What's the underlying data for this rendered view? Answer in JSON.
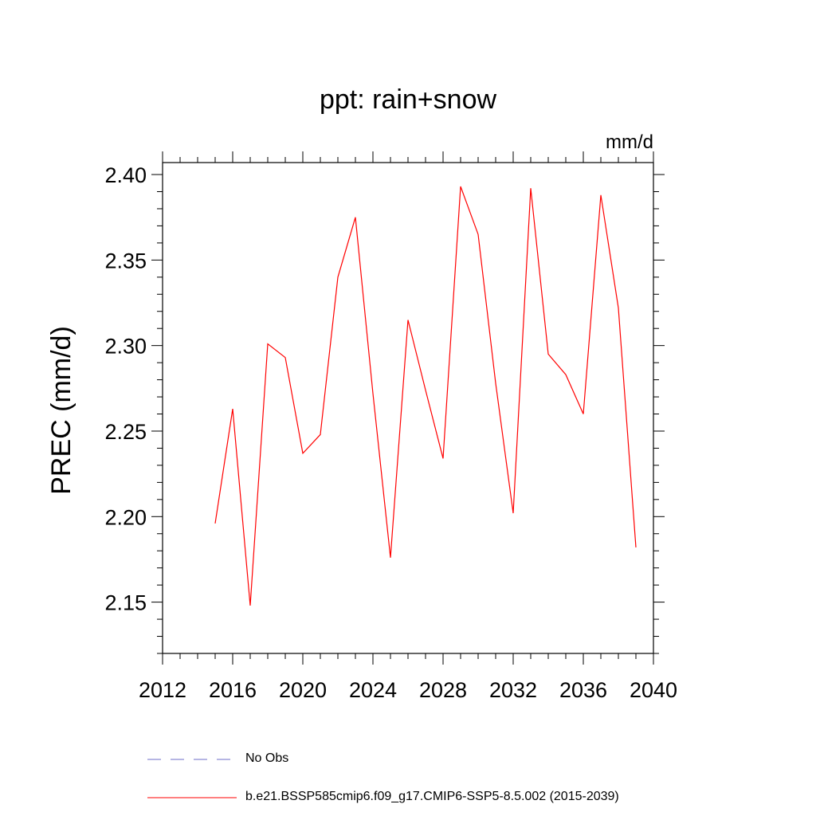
{
  "chart_data": {
    "type": "line",
    "title": "ppt: rain+snow",
    "units_label": "mm/d",
    "ylabel": "PREC  (mm/d)",
    "xlabel": "",
    "xlim": [
      2012,
      2040
    ],
    "ylim": [
      2.12,
      2.407
    ],
    "x_ticks": [
      2012,
      2016,
      2020,
      2024,
      2028,
      2032,
      2036,
      2040
    ],
    "x_tick_labels": [
      "2012",
      "2016",
      "2020",
      "2024",
      "2028",
      "2032",
      "2036",
      "2040"
    ],
    "y_ticks": [
      2.15,
      2.2,
      2.25,
      2.3,
      2.35,
      2.4
    ],
    "y_tick_labels": [
      "2.15",
      "2.20",
      "2.25",
      "2.30",
      "2.35",
      "2.40"
    ],
    "series": [
      {
        "name": "b.e21.BSSP585cmip6.f09_g17.CMIP6-SSP5-8.5.002 (2015-2039)",
        "color": "#ff0000",
        "x": [
          2015,
          2016,
          2017,
          2018,
          2019,
          2020,
          2021,
          2022,
          2023,
          2024,
          2025,
          2026,
          2027,
          2028,
          2029,
          2030,
          2031,
          2032,
          2033,
          2034,
          2035,
          2036,
          2037,
          2038,
          2039
        ],
        "values": [
          2.196,
          2.263,
          2.148,
          2.301,
          2.293,
          2.237,
          2.248,
          2.34,
          2.375,
          2.272,
          2.176,
          2.315,
          2.274,
          2.234,
          2.393,
          2.365,
          2.278,
          2.202,
          2.392,
          2.295,
          2.283,
          2.26,
          2.388,
          2.322,
          2.182
        ]
      }
    ],
    "legend": [
      {
        "label": "No Obs",
        "color": "#6c6cc8",
        "style": "dashed"
      },
      {
        "label": "b.e21.BSSP585cmip6.f09_g17.CMIP6-SSP5-8.5.002 (2015-2039)",
        "color": "#ff0000",
        "style": "solid"
      }
    ]
  }
}
